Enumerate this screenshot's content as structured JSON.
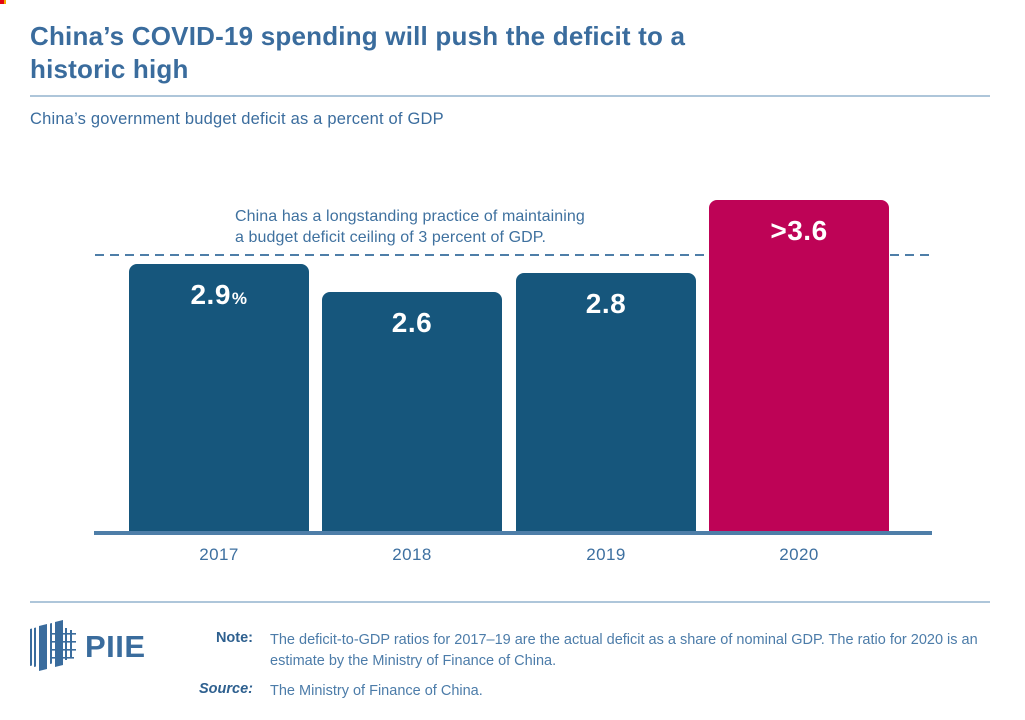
{
  "header": {
    "title_line1": "China’s COVID-19 spending will push the deficit to a",
    "title_line2": "historic high",
    "subtitle": "China’s government budget deficit as a percent of GDP"
  },
  "chart_data": {
    "type": "bar",
    "title": "China’s government budget deficit as a percent of GDP",
    "categories": [
      "2017",
      "2018",
      "2019",
      "2020"
    ],
    "values": [
      2.9,
      2.6,
      2.8,
      3.6
    ],
    "bar_labels": [
      {
        "main": "2.9",
        "suffix": "%"
      },
      {
        "main": "2.6",
        "suffix": ""
      },
      {
        "main": "2.8",
        "suffix": ""
      },
      {
        "main": ">3.6",
        "suffix": ""
      }
    ],
    "xlabel": "",
    "ylabel": "Percent of GDP",
    "ylim": [
      0,
      3.75
    ],
    "grid": false,
    "legend": "none",
    "reference_line": {
      "value": 3,
      "style": "dashed"
    },
    "annotation": {
      "line1": "China has a longstanding practice of maintaining",
      "line2": "a budget deficit ceiling of 3 percent of GDP."
    },
    "colors": {
      "default": "#16567c",
      "highlight": "#be0356",
      "highlight_index": 3,
      "axis_line": "#4e7ea8",
      "reference_line": "#4e7ea8"
    }
  },
  "colors": {
    "accent_text_blue": "#3a6c9d",
    "divider_blue": "#aec6da",
    "note_body_blue": "#4c7ca9"
  },
  "footer": {
    "logo_text": "PIIE",
    "note_label": "Note:",
    "note_line1": "The deficit-to-GDP ratios for 2017–19 are the actual deficit as a share of nominal GDP. The ratio",
    "note_line2": "for 2020 is an estimate by the Ministry of Finance of China.",
    "source_label": "Source:",
    "source_text": "The Ministry of Finance of China."
  }
}
